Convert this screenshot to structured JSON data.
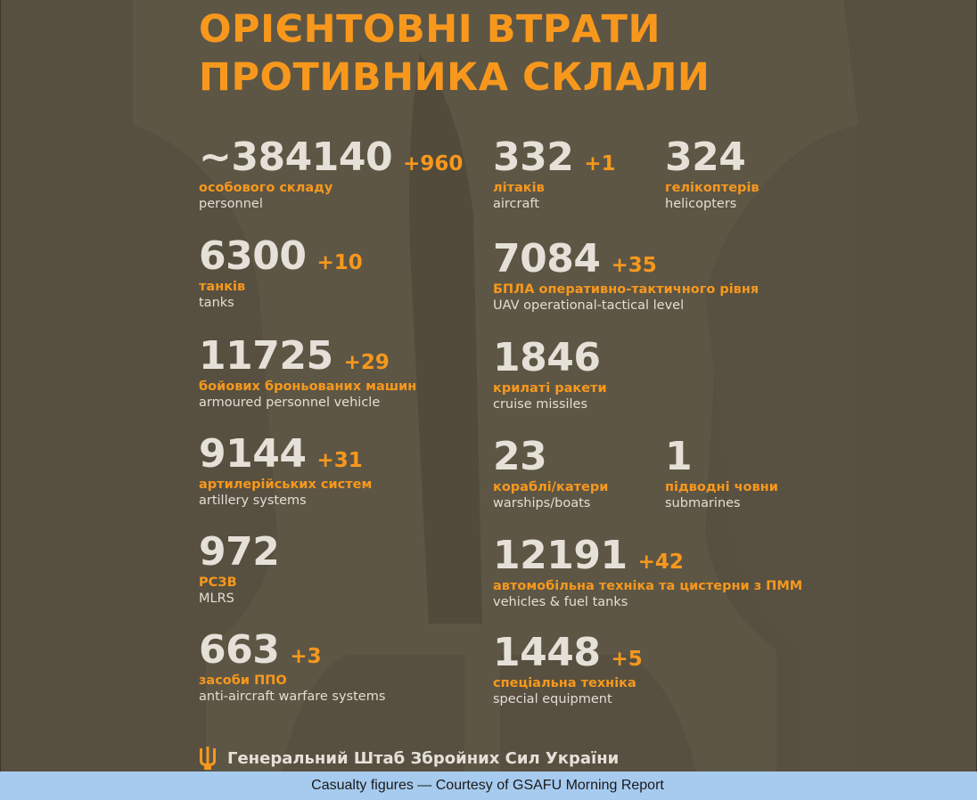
{
  "title": {
    "line1": "ОРІЄНТОВНІ ВТРАТИ",
    "line2": "ПРОТИВНИКА СКЛАЛИ"
  },
  "stats": {
    "personnel": {
      "value": "~384140",
      "delta": "+960",
      "ua": "особового складу",
      "en": "personnel"
    },
    "aircraft": {
      "value": "332",
      "delta": "+1",
      "ua": "літаків",
      "en": "aircraft"
    },
    "helicopters": {
      "value": "324",
      "delta": "",
      "ua": "гелікоптерів",
      "en": "helicopters"
    },
    "tanks": {
      "value": "6300",
      "delta": "+10",
      "ua": "танків",
      "en": "tanks"
    },
    "uav": {
      "value": "7084",
      "delta": "+35",
      "ua": "БПЛА оперативно-тактичного рівня",
      "en": "UAV operational-tactical level"
    },
    "apv": {
      "value": "11725",
      "delta": "+29",
      "ua": "бойових броньованих машин",
      "en": "armoured personnel vehicle"
    },
    "cruise_missiles": {
      "value": "1846",
      "delta": "",
      "ua": "крилаті ракети",
      "en": "cruise missiles"
    },
    "artillery": {
      "value": "9144",
      "delta": "+31",
      "ua": "артилерійських систем",
      "en": "artillery systems"
    },
    "warships": {
      "value": "23",
      "delta": "",
      "ua": "кораблі/катери",
      "en": "warships/boats"
    },
    "submarines": {
      "value": "1",
      "delta": "",
      "ua": "підводні човни",
      "en": "submarines"
    },
    "mlrs": {
      "value": "972",
      "delta": "",
      "ua": "РСЗВ",
      "en": "MLRS"
    },
    "vehicles": {
      "value": "12191",
      "delta": "+42",
      "ua": "автомобільна техніка та цистерни з ПММ",
      "en": "vehicles & fuel tanks"
    },
    "aa_warfare": {
      "value": "663",
      "delta": "+3",
      "ua": "засоби ППО",
      "en": "anti-aircraft warfare systems"
    },
    "special_equipment": {
      "value": "1448",
      "delta": "+5",
      "ua": "спеціальна техніка",
      "en": "special equipment"
    }
  },
  "footer": {
    "org": "Генеральний Штаб Збройних Сил України",
    "icon": "trident-icon"
  },
  "caption": "Casualty figures — Courtesy of GSAFU Morning Report",
  "colors": {
    "background": "#575040",
    "accent": "#f7981d",
    "number": "#e5e1d8",
    "caption_bar": "#a7cbef"
  }
}
